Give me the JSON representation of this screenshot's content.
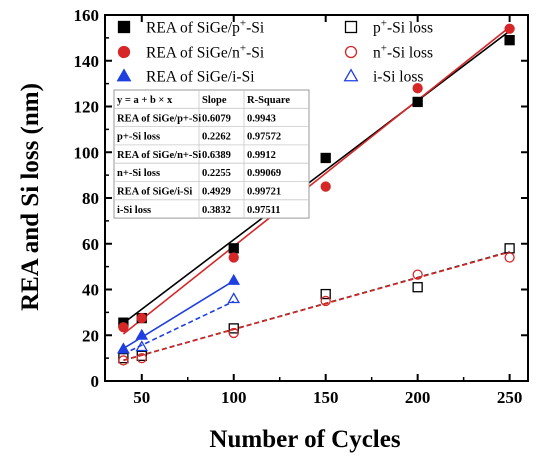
{
  "chart_data": {
    "type": "scatter",
    "xlabel": "Number of Cycles",
    "ylabel": "REA and Si loss (nm)",
    "xlim": [
      30,
      260
    ],
    "ylim": [
      0,
      160
    ],
    "xticks": [
      50,
      100,
      150,
      200,
      250
    ],
    "yticks": [
      0,
      20,
      40,
      60,
      80,
      100,
      120,
      140,
      160
    ],
    "grid": false,
    "legend_position": "top-left",
    "series": [
      {
        "key": "rea_p",
        "legend_main": "REA of SiGe/p",
        "legend_sup": "+",
        "legend_tail": "-Si",
        "marker": "square-filled",
        "color": "#000000",
        "x": [
          40,
          50,
          100,
          150,
          200,
          250
        ],
        "y": [
          25.5,
          27.5,
          58,
          97.5,
          122,
          149
        ],
        "fit": {
          "slope": 0.6079,
          "intercept": 1.0,
          "x_range": [
            40,
            250
          ],
          "dashed": false
        }
      },
      {
        "key": "loss_p",
        "legend_main": "p",
        "legend_sup": "+",
        "legend_tail": "-Si loss",
        "marker": "square-open",
        "color": "#000000",
        "x": [
          40,
          50,
          100,
          150,
          200,
          250
        ],
        "y": [
          10,
          11,
          23,
          38,
          41,
          58
        ],
        "fit": {
          "slope": 0.2262,
          "intercept": 0.0,
          "x_range": [
            40,
            250
          ],
          "dashed": true
        }
      },
      {
        "key": "rea_n",
        "legend_main": "REA of SiGe/n",
        "legend_sup": "+",
        "legend_tail": "-Si",
        "marker": "circle-filled",
        "color": "#d62728",
        "x": [
          40,
          50,
          100,
          150,
          200,
          250
        ],
        "y": [
          23.5,
          27.5,
          54,
          85,
          128,
          154
        ],
        "fit": {
          "slope": 0.6389,
          "intercept": -5.0,
          "x_range": [
            40,
            250
          ],
          "dashed": false
        }
      },
      {
        "key": "loss_n",
        "legend_main": "n",
        "legend_sup": "+",
        "legend_tail": "-Si loss",
        "marker": "circle-open",
        "color": "#d62728",
        "x": [
          40,
          50,
          100,
          150,
          200,
          250
        ],
        "y": [
          9,
          10,
          21,
          35,
          46.5,
          54
        ],
        "fit": {
          "slope": 0.2255,
          "intercept": 0.0,
          "x_range": [
            40,
            250
          ],
          "dashed": true
        }
      },
      {
        "key": "rea_i",
        "legend_main": "REA of SiGe/i-Si",
        "legend_sup": "",
        "legend_tail": "",
        "marker": "triangle-filled",
        "color": "#1f3fe0",
        "x": [
          40,
          50,
          100
        ],
        "y": [
          14,
          20,
          44
        ],
        "fit": {
          "slope": 0.4929,
          "intercept": -5.5,
          "x_range": [
            40,
            100
          ],
          "dashed": false
        }
      },
      {
        "key": "loss_i",
        "legend_main": "i-Si loss",
        "legend_sup": "",
        "legend_tail": "",
        "marker": "triangle-open",
        "color": "#1f3fe0",
        "x": [
          40,
          50,
          100
        ],
        "y": [
          14,
          15,
          36
        ],
        "fit": {
          "slope": 0.3832,
          "intercept": -3.5,
          "x_range": [
            40,
            100
          ],
          "dashed": true
        }
      }
    ],
    "fit_table": {
      "headers": [
        "y = a + b × x",
        "Slope",
        "R-Square"
      ],
      "rows": [
        [
          "REA of SiGe/p+-Si",
          "0.6079",
          "0.9943"
        ],
        [
          "p+-Si loss",
          "0.2262",
          "0.97572"
        ],
        [
          "REA of SiGe/n+-Si",
          "0.6389",
          "0.9912"
        ],
        [
          "n+-Si loss",
          "0.2255",
          "0.99069"
        ],
        [
          "REA of SiGe/i-Si",
          "0.4929",
          "0.99721"
        ],
        [
          "i-Si loss",
          "0.3832",
          "0.97511"
        ]
      ]
    }
  }
}
